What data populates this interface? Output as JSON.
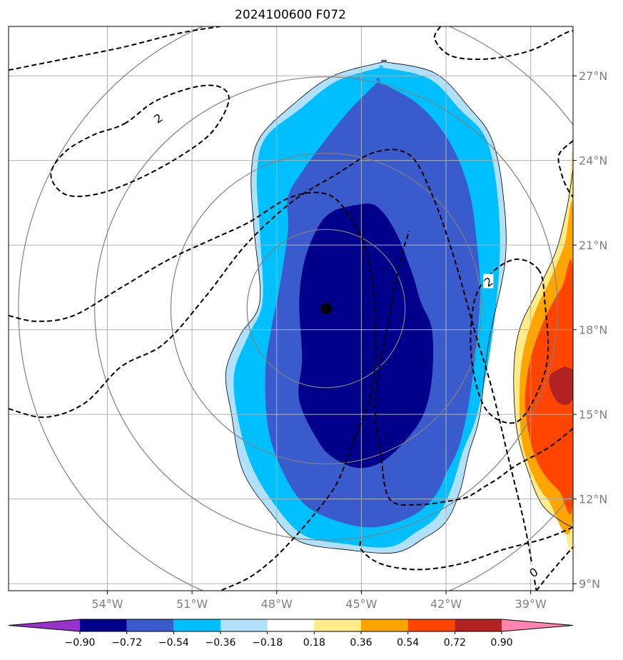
{
  "chart_data": {
    "type": "contour-map",
    "title": "2024100600 F072",
    "projection": "lat-lon",
    "lon_range": [
      -57.5,
      -37.5
    ],
    "lat_range": [
      8.75,
      28.75
    ],
    "lon_ticks": [
      -54,
      -51,
      -48,
      -45,
      -42,
      -39
    ],
    "lon_tick_labels": [
      "54°W",
      "51°W",
      "48°W",
      "45°W",
      "42°W",
      "39°W"
    ],
    "lat_ticks": [
      9,
      12,
      15,
      18,
      21,
      24,
      27
    ],
    "lat_tick_labels": [
      "9°N",
      "12°N",
      "15°N",
      "18°N",
      "21°N",
      "24°N",
      "27°N"
    ],
    "grid": true,
    "center_marker": {
      "lon": -46.25,
      "lat": 18.75
    },
    "range_rings_deg": [
      2.8,
      5.5,
      8.2,
      10.9
    ],
    "fill_levels": [
      -0.9,
      -0.72,
      -0.54,
      -0.36,
      -0.18,
      0.18,
      0.36,
      0.54,
      0.72,
      0.9
    ],
    "colorbar_labels": [
      "−0.90",
      "−0.72",
      "−0.54",
      "−0.36",
      "−0.18",
      "0.18",
      "0.36",
      "0.54",
      "0.72",
      "0.90"
    ],
    "colorbar_colors": [
      "#9932cc",
      "#00008b",
      "#3a5bcc",
      "#00bfff",
      "#b0e0fa",
      "#ffffff",
      "#ffeb8a",
      "#ffa500",
      "#ff4500",
      "#b22222",
      "#ff85b0"
    ],
    "colorbar_extend": "both",
    "contour_labels": [
      {
        "text": "2",
        "lon": -52.2,
        "lat": 25.5
      },
      {
        "text": "2",
        "lon": -40.5,
        "lat": 19.7
      },
      {
        "text": "0",
        "lon": -38.9,
        "lat": 9.4
      }
    ],
    "negative_anomaly_regions": [
      {
        "level": "-0.18",
        "lon": [
          -44.2,
          -42.4,
          -41.2,
          -40.4,
          -40.0,
          -39.9,
          -40.5,
          -40.8,
          -41.2,
          -41.5,
          -42.0,
          -42.8,
          -43.8,
          -45.5,
          -47.2,
          -48.2,
          -49.2,
          -49.6,
          -49.8,
          -49.3,
          -48.6,
          -48.8,
          -48.9,
          -48.6,
          -47.4,
          -46.0,
          -44.2
        ],
        "lat": [
          27.5,
          27.1,
          25.9,
          24.8,
          23.0,
          20.5,
          17.5,
          15.0,
          13.6,
          12.3,
          11.2,
          10.6,
          10.1,
          10.2,
          10.5,
          11.5,
          13.0,
          15.0,
          16.5,
          17.8,
          19.0,
          21.5,
          23.5,
          24.8,
          26.0,
          27.0,
          27.5
        ]
      },
      {
        "level": "-0.36",
        "lon": [
          -44.3,
          -42.6,
          -41.5,
          -40.6,
          -40.2,
          -40.1,
          -40.4,
          -40.9,
          -41.4,
          -41.8,
          -42.3,
          -43.1,
          -44.0,
          -45.5,
          -47.0,
          -48.0,
          -48.9,
          -49.4,
          -49.5,
          -49.0,
          -48.5,
          -48.6,
          -48.7,
          -48.4,
          -47.2,
          -45.9,
          -44.3
        ],
        "lat": [
          27.3,
          26.9,
          25.8,
          24.8,
          23.0,
          20.5,
          17.5,
          15.0,
          13.7,
          12.4,
          11.4,
          10.8,
          10.3,
          10.4,
          10.7,
          11.7,
          13.2,
          15.0,
          16.5,
          17.8,
          19.0,
          21.5,
          23.5,
          24.8,
          25.8,
          26.8,
          27.3
        ]
      },
      {
        "level": "-0.54",
        "lon": [
          -44.4,
          -43.0,
          -41.9,
          -41.2,
          -40.9,
          -40.8,
          -41.1,
          -41.5,
          -42.0,
          -42.4,
          -43.2,
          -44.5,
          -45.8,
          -47.0,
          -47.8,
          -48.3,
          -48.4,
          -48.2,
          -47.9,
          -47.6,
          -47.6,
          -47.1,
          -46.3,
          -45.4,
          -44.4
        ],
        "lat": [
          26.8,
          26.0,
          24.7,
          23.0,
          21.0,
          19.0,
          16.0,
          14.0,
          12.9,
          12.1,
          11.4,
          11.0,
          11.2,
          11.8,
          13.0,
          14.5,
          16.5,
          18.0,
          19.5,
          21.5,
          22.7,
          23.6,
          24.7,
          25.8,
          26.8
        ]
      },
      {
        "level": "-0.72",
        "lon": [
          -45.3,
          -44.5,
          -43.8,
          -43.2,
          -42.9,
          -42.5,
          -42.5,
          -42.8,
          -43.5,
          -44.3,
          -45.1,
          -45.9,
          -46.5,
          -47.2,
          -47.1,
          -47.2,
          -47.0,
          -46.5,
          -46.0,
          -45.3
        ],
        "lat": [
          22.4,
          22.4,
          21.5,
          20.0,
          19.0,
          18.0,
          16.3,
          15.0,
          14.0,
          13.3,
          13.1,
          13.4,
          14.0,
          15.5,
          17.0,
          19.0,
          20.5,
          21.7,
          22.2,
          22.4
        ]
      }
    ],
    "positive_anomaly_regions": [
      {
        "level": "0.18",
        "lon": [
          -37.5,
          -37.7,
          -38.1,
          -38.8,
          -39.4,
          -39.6,
          -39.5,
          -39.1,
          -38.6,
          -37.9,
          -37.5
        ],
        "lat": [
          23.7,
          22.4,
          20.8,
          19.3,
          18.0,
          16.5,
          14.5,
          13.0,
          11.8,
          11.2,
          11.0
        ]
      },
      {
        "level": "0.36",
        "lon": [
          -37.5,
          -37.8,
          -38.3,
          -38.9,
          -39.3,
          -39.4,
          -39.3,
          -38.9,
          -38.4,
          -37.5
        ],
        "lat": [
          22.0,
          21.0,
          19.8,
          18.5,
          17.0,
          15.5,
          14.0,
          12.8,
          12.0,
          11.4
        ]
      },
      {
        "level": "0.54",
        "lon": [
          -37.5,
          -37.9,
          -38.5,
          -39.0,
          -39.2,
          -39.0,
          -38.6,
          -38.0,
          -37.5
        ],
        "lat": [
          20.0,
          19.5,
          18.4,
          17.0,
          15.5,
          14.0,
          13.0,
          12.3,
          12.0
        ]
      },
      {
        "level": "0.72",
        "lon": [
          -37.8,
          -37.4,
          -37.4,
          -37.6,
          -38.0,
          -38.3,
          -38.3,
          -37.8
        ],
        "lat": [
          16.7,
          16.5,
          16.0,
          15.4,
          15.4,
          15.9,
          16.4,
          16.7
        ]
      }
    ],
    "dashed_contours": [
      {
        "lon": [
          -57.5,
          -55.5,
          -53.5,
          -51.5,
          -50.0
        ],
        "lat": [
          27.2,
          27.6,
          28.0,
          28.5,
          28.75
        ]
      },
      {
        "lon": [
          -53.4,
          -52.3,
          -50.9,
          -50.0,
          -49.7,
          -50.3,
          -51.5,
          -53.0,
          -54.4,
          -55.5,
          -56.0,
          -55.5,
          -54.5,
          -53.4
        ],
        "lat": [
          25.3,
          26.1,
          26.6,
          26.6,
          26.1,
          25.0,
          24.1,
          23.3,
          22.8,
          22.8,
          23.5,
          24.3,
          24.9,
          25.3
        ]
      },
      {
        "lon": [
          -57.5,
          -56.5,
          -55.2,
          -53.5,
          -51.8,
          -50.3,
          -49.0,
          -47.5,
          -46.2,
          -45.4,
          -44.8,
          -44.5,
          -44.6,
          -45.3,
          -45.9,
          -46.8,
          -47.5,
          -48.2,
          -49.0,
          -50.0
        ],
        "lat": [
          18.5,
          18.3,
          18.5,
          19.5,
          20.5,
          21.2,
          21.8,
          22.7,
          22.8,
          22.0,
          20.7,
          18.5,
          16.0,
          14.0,
          12.5,
          11.3,
          10.5,
          9.8,
          9.2,
          8.75
        ]
      },
      {
        "lon": [
          -57.5,
          -56.2,
          -54.8,
          -53.5,
          -52.0,
          -50.5,
          -49.1,
          -47.5,
          -45.9,
          -44.5,
          -43.3,
          -42.5,
          -41.7,
          -41.0,
          -40.4,
          -39.8,
          -39.2,
          -38.8
        ],
        "lat": [
          15.2,
          14.9,
          15.4,
          16.7,
          17.5,
          19.2,
          21.0,
          22.5,
          23.5,
          24.3,
          24.2,
          22.8,
          20.5,
          18.0,
          16.0,
          13.5,
          11.0,
          8.75
        ]
      },
      {
        "lon": [
          -38.8,
          -38.2,
          -37.5
        ],
        "lat": [
          8.75,
          9.5,
          10.3
        ]
      },
      {
        "lon": [
          -37.5,
          -38.0,
          -37.9,
          -37.7,
          -37.5
        ],
        "lat": [
          24.7,
          24.2,
          23.5,
          23.0,
          22.7
        ]
      },
      {
        "lon": [
          -37.5,
          -38.4,
          -39.5,
          -40.2,
          -40.7,
          -41.0,
          -41.5,
          -43.0,
          -44.0,
          -44.3,
          -44.5,
          -44.1,
          -43.6,
          -43.3
        ],
        "lat": [
          14.5,
          13.8,
          13.2,
          12.7,
          12.4,
          12.2,
          12.0,
          11.8,
          12.0,
          13.5,
          15.5,
          18.0,
          20.5,
          21.5
        ]
      },
      {
        "lon": [
          -38.7,
          -39.5,
          -40.4,
          -41.0,
          -41.1,
          -40.6,
          -39.6,
          -38.9,
          -38.4,
          -38.5,
          -38.7
        ],
        "lat": [
          20.1,
          20.5,
          20.0,
          19.0,
          17.0,
          15.2,
          14.7,
          15.5,
          17.0,
          19.0,
          20.1
        ]
      },
      {
        "lon": [
          -37.5,
          -38.5,
          -40.0,
          -41.5,
          -43.0,
          -44.3,
          -45.0,
          -45.0
        ],
        "lat": [
          11.0,
          10.6,
          10.2,
          9.7,
          9.5,
          9.7,
          10.2,
          10.6
        ]
      },
      {
        "lon": [
          -42.2,
          -42.4,
          -41.8,
          -40.5,
          -39.0,
          -37.8,
          -37.5
        ],
        "lat": [
          28.75,
          28.3,
          27.7,
          27.6,
          27.9,
          28.5,
          28.6
        ]
      }
    ]
  }
}
